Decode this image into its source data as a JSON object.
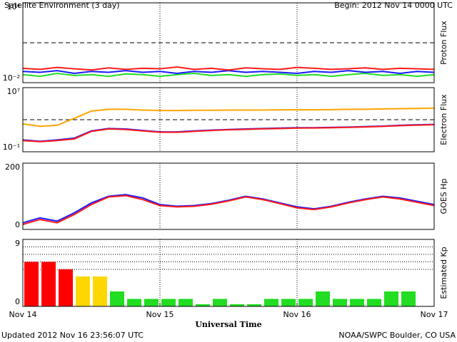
{
  "header": {
    "title": "Satellite Environment (3 day)",
    "begin": "Begin:  2012 Nov 14 0000 UTC"
  },
  "xaxis": {
    "label": "Universal Time",
    "xlim": [
      0,
      72
    ],
    "xticks": [
      {
        "value": 0,
        "label": "Nov 14"
      },
      {
        "value": 24,
        "label": "Nov 15"
      },
      {
        "value": 48,
        "label": "Nov 16"
      },
      {
        "value": 72,
        "label": "Nov 17"
      }
    ]
  },
  "chart_data": [
    {
      "type": "line",
      "ylabel": "Proton Flux",
      "log": true,
      "ylim": [
        0.01,
        10000
      ],
      "yticks": [
        {
          "value": 10000,
          "label": "10⁴"
        },
        {
          "value": 0.01,
          "label": "10⁻²"
        }
      ],
      "threshold": 10,
      "x": [
        0,
        3,
        6,
        9,
        12,
        15,
        18,
        21,
        24,
        27,
        30,
        33,
        36,
        39,
        42,
        45,
        48,
        51,
        54,
        57,
        60,
        63,
        66,
        69,
        72
      ],
      "series": [
        {
          "color": "#22dd22",
          "values": [
            0.04,
            0.03,
            0.05,
            0.035,
            0.04,
            0.03,
            0.045,
            0.04,
            0.03,
            0.04,
            0.05,
            0.035,
            0.04,
            0.03,
            0.04,
            0.045,
            0.035,
            0.04,
            0.03,
            0.04,
            0.05,
            0.035,
            0.04,
            0.03,
            0.04
          ]
        },
        {
          "color": "#1a1aff",
          "values": [
            0.07,
            0.06,
            0.08,
            0.05,
            0.07,
            0.06,
            0.08,
            0.06,
            0.07,
            0.05,
            0.07,
            0.06,
            0.08,
            0.06,
            0.07,
            0.06,
            0.05,
            0.07,
            0.06,
            0.08,
            0.06,
            0.07,
            0.05,
            0.07,
            0.06
          ]
        },
        {
          "color": "#ff1a1a",
          "values": [
            0.12,
            0.1,
            0.14,
            0.11,
            0.09,
            0.13,
            0.1,
            0.12,
            0.11,
            0.15,
            0.1,
            0.12,
            0.09,
            0.13,
            0.11,
            0.1,
            0.14,
            0.12,
            0.1,
            0.11,
            0.13,
            0.1,
            0.12,
            0.11,
            0.1
          ]
        }
      ]
    },
    {
      "type": "line",
      "ylabel": "Electron Flux",
      "log": true,
      "ylim": [
        0.1,
        10000000
      ],
      "yticks": [
        {
          "value": 10000000,
          "label": "10⁷"
        },
        {
          "value": 0.1,
          "label": "10⁻¹"
        }
      ],
      "threshold": 1000,
      "x": [
        0,
        3,
        6,
        9,
        12,
        15,
        18,
        21,
        24,
        27,
        30,
        33,
        36,
        39,
        42,
        45,
        48,
        51,
        54,
        57,
        60,
        63,
        66,
        69,
        72
      ],
      "series": [
        {
          "color": "#ffa500",
          "values": [
            300,
            150,
            200,
            1500,
            12000,
            20000,
            20000,
            16000,
            14000,
            14000,
            15000,
            15000,
            16000,
            16000,
            16000,
            17000,
            17000,
            17000,
            18000,
            20000,
            20000,
            22000,
            24000,
            25000,
            28000
          ]
        },
        {
          "color": "#1a1aff",
          "values": [
            3,
            2,
            3,
            5,
            40,
            80,
            70,
            45,
            30,
            30,
            40,
            50,
            60,
            70,
            80,
            90,
            100,
            100,
            110,
            120,
            140,
            160,
            200,
            230,
            260
          ]
        },
        {
          "color": "#ff1a1a",
          "values": [
            2.5,
            1.8,
            2.5,
            4,
            35,
            70,
            60,
            40,
            27,
            27,
            35,
            45,
            55,
            62,
            72,
            80,
            90,
            92,
            100,
            110,
            125,
            145,
            180,
            210,
            240
          ]
        }
      ]
    },
    {
      "type": "line",
      "ylabel": "GOES Hp",
      "log": false,
      "ylim": [
        0,
        200
      ],
      "yticks": [
        200,
        0
      ],
      "x": [
        0,
        3,
        6,
        9,
        12,
        15,
        18,
        21,
        24,
        27,
        30,
        33,
        36,
        39,
        42,
        45,
        48,
        51,
        54,
        57,
        60,
        63,
        66,
        69,
        72
      ],
      "series": [
        {
          "color": "#1a1aff",
          "values": [
            20,
            35,
            25,
            50,
            80,
            100,
            105,
            95,
            75,
            70,
            72,
            78,
            88,
            100,
            92,
            80,
            68,
            62,
            70,
            82,
            92,
            100,
            95,
            85,
            75
          ]
        },
        {
          "color": "#ff1a1a",
          "values": [
            15,
            30,
            20,
            45,
            75,
            98,
            102,
            90,
            72,
            68,
            70,
            76,
            86,
            98,
            90,
            78,
            65,
            60,
            68,
            80,
            90,
            98,
            92,
            82,
            72
          ]
        }
      ]
    },
    {
      "type": "bar",
      "ylabel": "Estimated Kp",
      "log": false,
      "ylim": [
        0,
        9
      ],
      "yticks": [
        9,
        0
      ],
      "hgrid": [
        5,
        6,
        7,
        8
      ],
      "x": [
        0,
        3,
        6,
        9,
        12,
        15,
        18,
        21,
        24,
        27,
        30,
        33,
        36,
        39,
        42,
        45,
        48,
        51,
        54,
        57,
        60,
        63,
        66
      ],
      "values": [
        6,
        6,
        5,
        4,
        4,
        2,
        1,
        1,
        1,
        1,
        0.3,
        1,
        0.3,
        0.3,
        1,
        1,
        1,
        2,
        1,
        1,
        1,
        2,
        2
      ],
      "colors": [
        "#ff0000",
        "#ff0000",
        "#ff0000",
        "#ffd700",
        "#ffd700",
        "#22dd22",
        "#22dd22",
        "#22dd22",
        "#22dd22",
        "#22dd22",
        "#22dd22",
        "#22dd22",
        "#22dd22",
        "#22dd22",
        "#22dd22",
        "#22dd22",
        "#22dd22",
        "#22dd22",
        "#22dd22",
        "#22dd22",
        "#22dd22",
        "#22dd22",
        "#22dd22"
      ]
    }
  ],
  "footer": {
    "updated": "Updated 2012 Nov 16 23:56:07 UTC",
    "credit": "NOAA/SWPC Boulder, CO USA"
  }
}
